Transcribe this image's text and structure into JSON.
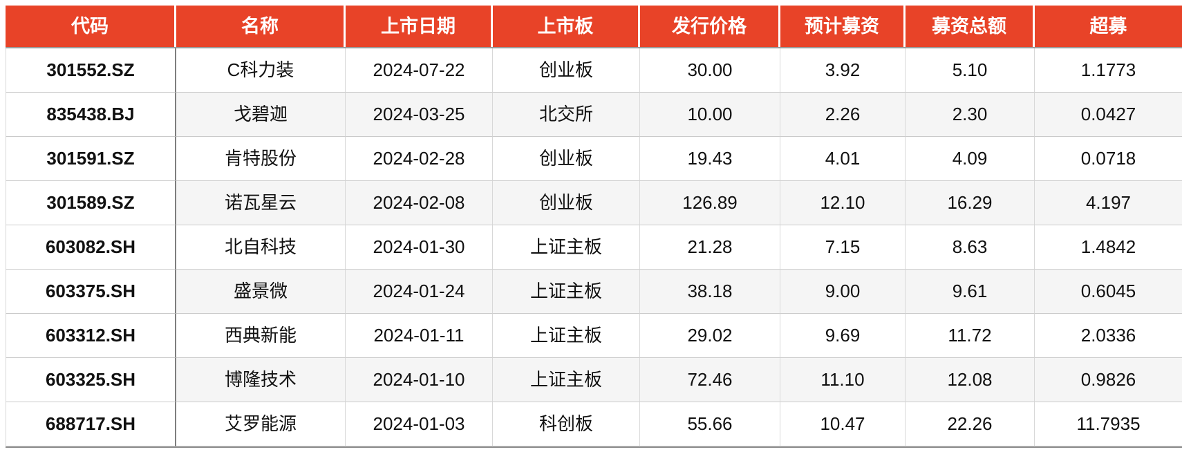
{
  "chart_data": {
    "type": "table",
    "columns": [
      {
        "key": "code",
        "label": "代码"
      },
      {
        "key": "name",
        "label": "名称"
      },
      {
        "key": "list_date",
        "label": "上市日期"
      },
      {
        "key": "board",
        "label": "上市板"
      },
      {
        "key": "issue_price",
        "label": "发行价格"
      },
      {
        "key": "est_raise",
        "label": "预计募资"
      },
      {
        "key": "total_raise",
        "label": "募资总额"
      },
      {
        "key": "over_raise",
        "label": "超募"
      }
    ],
    "rows": [
      {
        "code": "301552.SZ",
        "name": "C科力装",
        "list_date": "2024-07-22",
        "board": "创业板",
        "issue_price": "30.00",
        "est_raise": "3.92",
        "total_raise": "5.10",
        "over_raise": "1.1773"
      },
      {
        "code": "835438.BJ",
        "name": "戈碧迦",
        "list_date": "2024-03-25",
        "board": "北交所",
        "issue_price": "10.00",
        "est_raise": "2.26",
        "total_raise": "2.30",
        "over_raise": "0.0427"
      },
      {
        "code": "301591.SZ",
        "name": "肯特股份",
        "list_date": "2024-02-28",
        "board": "创业板",
        "issue_price": "19.43",
        "est_raise": "4.01",
        "total_raise": "4.09",
        "over_raise": "0.0718"
      },
      {
        "code": "301589.SZ",
        "name": "诺瓦星云",
        "list_date": "2024-02-08",
        "board": "创业板",
        "issue_price": "126.89",
        "est_raise": "12.10",
        "total_raise": "16.29",
        "over_raise": "4.197"
      },
      {
        "code": "603082.SH",
        "name": "北自科技",
        "list_date": "2024-01-30",
        "board": "上证主板",
        "issue_price": "21.28",
        "est_raise": "7.15",
        "total_raise": "8.63",
        "over_raise": "1.4842"
      },
      {
        "code": "603375.SH",
        "name": "盛景微",
        "list_date": "2024-01-24",
        "board": "上证主板",
        "issue_price": "38.18",
        "est_raise": "9.00",
        "total_raise": "9.61",
        "over_raise": "0.6045"
      },
      {
        "code": "603312.SH",
        "name": "西典新能",
        "list_date": "2024-01-11",
        "board": "上证主板",
        "issue_price": "29.02",
        "est_raise": "9.69",
        "total_raise": "11.72",
        "over_raise": "2.0336"
      },
      {
        "code": "603325.SH",
        "name": "博隆技术",
        "list_date": "2024-01-10",
        "board": "上证主板",
        "issue_price": "72.46",
        "est_raise": "11.10",
        "total_raise": "12.08",
        "over_raise": "0.9826"
      },
      {
        "code": "688717.SH",
        "name": "艾罗能源",
        "list_date": "2024-01-03",
        "board": "科创板",
        "issue_price": "55.66",
        "est_raise": "10.47",
        "total_raise": "22.26",
        "over_raise": "11.7935"
      }
    ],
    "layout": {
      "zebra_striping": true,
      "striped_row_indexes": [
        1,
        3,
        5,
        7
      ],
      "alignment": "center"
    }
  },
  "style": {
    "header_bg": "#E84328",
    "header_text": "#FFFFFF",
    "zebra_bg": "#F5F5F5",
    "row_border": "#CACACA",
    "col_border": "#D8D8D8",
    "code_col_border": "#7E7E7E",
    "header_underline": "#9B9B9B",
    "bottom_border": "#909090",
    "text_color": "#111111"
  }
}
